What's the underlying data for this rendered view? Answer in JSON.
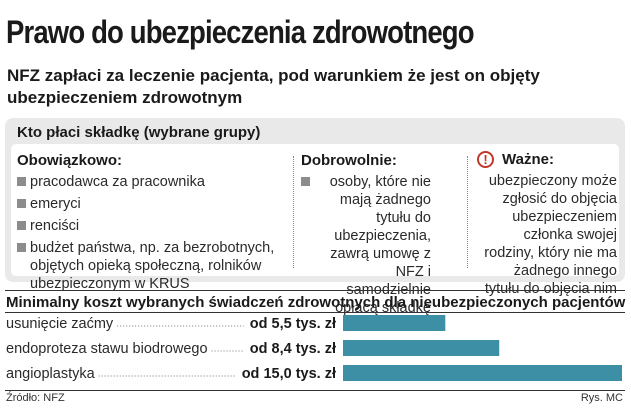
{
  "title": "Prawo do ubezpieczenia zdrowotnego",
  "subtitle": "NFZ zapłaci za leczenie pacjenta, pod warunkiem że jest on objęty ubezpieczeniem zdrowotnym",
  "panel": {
    "header": "Kto płaci składkę (wybrane grupy)",
    "mandatory": {
      "heading": "Obowiązkowo:",
      "items": [
        "pracodawca za pracownika",
        "emeryci",
        "renciści",
        "budżet państwa, np. za bezrobotnych, objętych opieką społeczną, rolników ubezpieczonym w KRUS"
      ]
    },
    "voluntary": {
      "heading": "Dobrowolnie:",
      "text": "osoby, które nie mają żadnego tytułu do ubezpieczenia, zawrą umowę z NFZ i samodzielnie opłacą składkę"
    },
    "important": {
      "heading": "Ważne:",
      "icon": "exclamation-icon",
      "text": "ubezpieczony może zgłosić do objęcia ubezpieczeniem członka swojej rodziny, który nie ma żadnego innego tytułu do objęcia nim"
    }
  },
  "chart_data": {
    "type": "bar",
    "orientation": "horizontal",
    "title": "Minimalny koszt wybranych świadczeń zdrowotnych dla nieubezpieczonych pacjentów",
    "categories": [
      "usunięcie zaćmy",
      "endoproteza stawu biodrowego",
      "angioplastyka"
    ],
    "values": [
      5.5,
      8.4,
      15.0
    ],
    "value_labels": [
      "od 5,5 tys. zł",
      "od 8,4 tys. zł",
      "od 15,0 tys. zł"
    ],
    "unit": "tys. zł",
    "xlim": [
      0,
      15.0
    ],
    "bar_color": "#3d8fa6",
    "grid": false,
    "legend": "none"
  },
  "footer": {
    "source": "Źródło: NFZ",
    "credit": "Rys. MC"
  },
  "colors": {
    "panel_bg": "#e9e9e9",
    "bar": "#3d8fa6",
    "warning": "#c0392b"
  }
}
